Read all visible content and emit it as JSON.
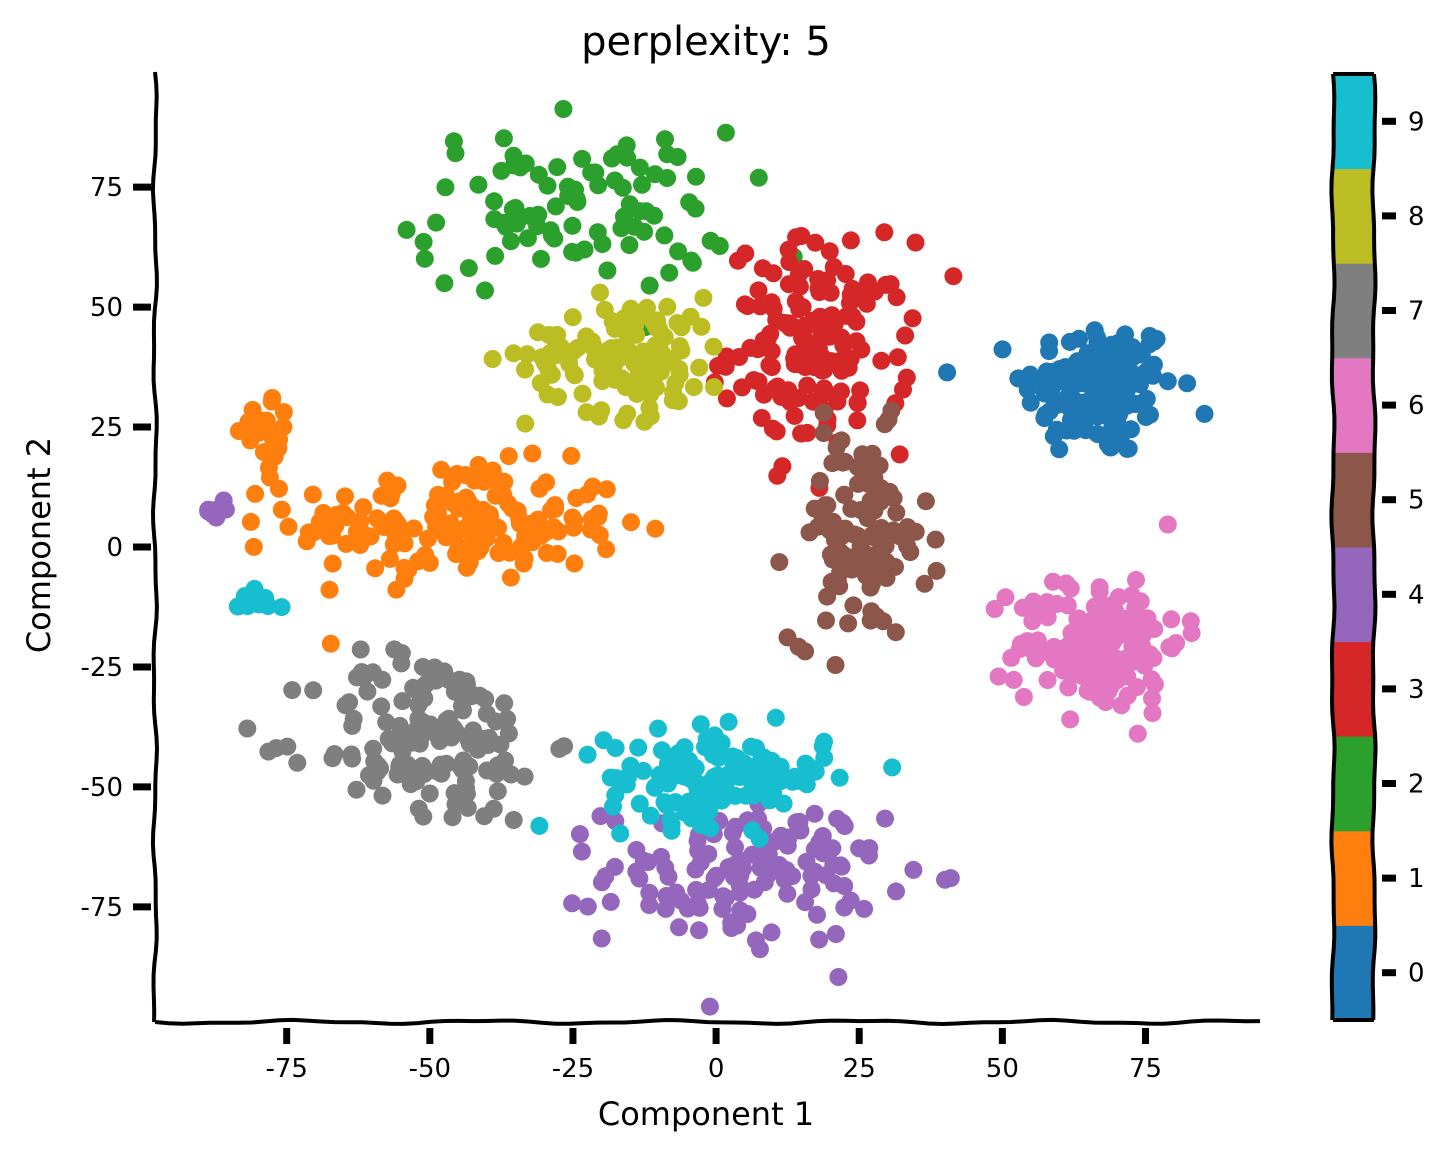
{
  "chart_data": {
    "type": "scatter",
    "title": "perplexity: 5",
    "xlabel": "Component 1",
    "ylabel": "Component 2",
    "xlim": [
      -98,
      95
    ],
    "ylim": [
      -99,
      99
    ],
    "x_ticks": [
      -75,
      -50,
      -25,
      0,
      25,
      50,
      75
    ],
    "y_ticks": [
      -75,
      -50,
      -25,
      0,
      25,
      50,
      75
    ],
    "grid": false,
    "colorbar": {
      "ticks": [
        0,
        1,
        2,
        3,
        4,
        5,
        6,
        7,
        8,
        9
      ],
      "colors": [
        "#1f77b4",
        "#ff7f0e",
        "#2ca02c",
        "#d62728",
        "#9467bd",
        "#8c564b",
        "#e377c2",
        "#7f7f7f",
        "#bcbd22",
        "#17becf"
      ]
    },
    "clusters": [
      {
        "label": 0,
        "center": [
          67,
          33
        ],
        "spread": [
          11,
          12
        ],
        "n": 150
      },
      {
        "label": 1,
        "center": [
          -45,
          5
        ],
        "spread": [
          24,
          10
        ],
        "n": 170
      },
      {
        "label": 2,
        "center": [
          -25,
          70
        ],
        "spread": [
          23,
          14
        ],
        "n": 95
      },
      {
        "label": 3,
        "center": [
          18,
          42
        ],
        "spread": [
          13,
          18
        ],
        "n": 150
      },
      {
        "label": 4,
        "center": [
          5,
          -68
        ],
        "spread": [
          20,
          12
        ],
        "n": 130
      },
      {
        "label": 5,
        "center": [
          25,
          2
        ],
        "spread": [
          10,
          18
        ],
        "n": 110
      },
      {
        "label": 6,
        "center": [
          67,
          -20
        ],
        "spread": [
          12,
          12
        ],
        "n": 150
      },
      {
        "label": 7,
        "center": [
          -50,
          -40
        ],
        "spread": [
          17,
          15
        ],
        "n": 140
      },
      {
        "label": 8,
        "center": [
          -15,
          40
        ],
        "spread": [
          15,
          10
        ],
        "n": 120
      },
      {
        "label": 9,
        "center": [
          0,
          -48
        ],
        "spread": [
          16,
          8
        ],
        "n": 130
      },
      {
        "label": 9,
        "center": [
          -80,
          -11
        ],
        "spread": [
          3,
          2
        ],
        "n": 14
      },
      {
        "label": 4,
        "center": [
          -88,
          8
        ],
        "spread": [
          2,
          2
        ],
        "n": 8
      },
      {
        "label": 1,
        "center": [
          -78,
          22
        ],
        "spread": [
          4,
          6
        ],
        "n": 24
      }
    ]
  }
}
